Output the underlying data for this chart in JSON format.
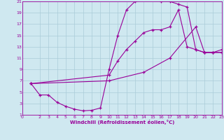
{
  "xlabel": "Windchill (Refroidissement éolien,°C)",
  "bg_color": "#cfe8f0",
  "line_color": "#990099",
  "grid_color": "#aaccd8",
  "xmin": 0,
  "xmax": 23,
  "ymin": 1,
  "ymax": 21,
  "yticks": [
    1,
    3,
    5,
    7,
    9,
    11,
    13,
    15,
    17,
    19,
    21
  ],
  "xticks": [
    0,
    2,
    3,
    4,
    5,
    6,
    7,
    8,
    9,
    10,
    11,
    12,
    13,
    14,
    15,
    16,
    17,
    18,
    19,
    20,
    21,
    22,
    23
  ],
  "curve1_x": [
    1,
    2,
    3,
    4,
    5,
    6,
    7,
    8,
    9,
    10,
    11,
    12,
    13,
    14,
    15,
    16,
    17,
    18,
    19,
    20,
    21,
    22,
    23
  ],
  "curve1_y": [
    6.5,
    4.5,
    4.5,
    3.2,
    2.5,
    2.0,
    1.7,
    1.8,
    2.2,
    9.0,
    15.0,
    19.5,
    21.0,
    21.5,
    21.5,
    21.0,
    21.0,
    20.5,
    20.0,
    12.5,
    12.0,
    12.0,
    12.0
  ],
  "curve2_x": [
    1,
    10,
    11,
    12,
    13,
    14,
    15,
    16,
    17,
    18,
    19,
    20,
    21,
    22,
    23
  ],
  "curve2_y": [
    6.5,
    8.0,
    10.5,
    12.5,
    14.0,
    15.5,
    16.0,
    16.0,
    16.5,
    19.5,
    13.0,
    12.5,
    12.0,
    12.0,
    12.0
  ],
  "curve3_x": [
    1,
    10,
    14,
    17,
    20,
    21,
    22,
    23
  ],
  "curve3_y": [
    6.5,
    7.0,
    8.5,
    11.0,
    16.5,
    12.0,
    12.0,
    12.5
  ]
}
